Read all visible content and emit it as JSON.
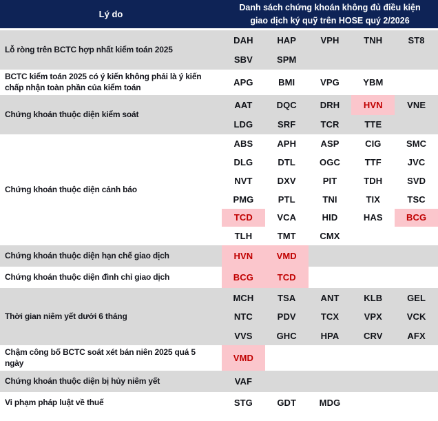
{
  "header": {
    "reason_label": "Lý do",
    "list_title_line1": "Danh sách chứng khoán không đủ điều kiện",
    "list_title_line2": "giao dịch ký quỹ trên HOSE quý 2/2026"
  },
  "colors": {
    "header_bg": "#0e2356",
    "header_text": "#ffffff",
    "row_shade": "#d9d9d9",
    "row_plain": "#ffffff",
    "highlight_bg": "#fbc6cc",
    "highlight_text": "#c00000",
    "label_text": "#15161d",
    "ticker_text": "#101218"
  },
  "rows": [
    {
      "reason": "Lỗ ròng trên BCTC hợp nhất kiểm toán 2025",
      "tickers": [
        {
          "t": "DAH",
          "hl": false
        },
        {
          "t": "HAP",
          "hl": false
        },
        {
          "t": "VPH",
          "hl": false
        },
        {
          "t": "TNH",
          "hl": false
        },
        {
          "t": "ST8",
          "hl": false
        },
        {
          "t": "SBV",
          "hl": false
        },
        {
          "t": "SPM",
          "hl": false
        }
      ]
    },
    {
      "reason": "BCTC kiểm toán 2025 có ý kiến không phải là ý kiến chấp nhận toàn phần của kiểm toán",
      "tickers": [
        {
          "t": "APG",
          "hl": false
        },
        {
          "t": "BMI",
          "hl": false
        },
        {
          "t": "VPG",
          "hl": false
        },
        {
          "t": "YBM",
          "hl": false
        }
      ]
    },
    {
      "reason": "Chứng khoán thuộc diện kiểm soát",
      "tickers": [
        {
          "t": "AAT",
          "hl": false
        },
        {
          "t": "DQC",
          "hl": false
        },
        {
          "t": "DRH",
          "hl": false
        },
        {
          "t": "HVN",
          "hl": true
        },
        {
          "t": "VNE",
          "hl": false
        },
        {
          "t": "LDG",
          "hl": false
        },
        {
          "t": "SRF",
          "hl": false
        },
        {
          "t": "TCR",
          "hl": false
        },
        {
          "t": "TTE",
          "hl": false
        }
      ]
    },
    {
      "reason": "Chứng khoán thuộc diện cảnh báo",
      "tickers": [
        {
          "t": "ABS",
          "hl": false
        },
        {
          "t": "APH",
          "hl": false
        },
        {
          "t": "ASP",
          "hl": false
        },
        {
          "t": "CIG",
          "hl": false
        },
        {
          "t": "SMC",
          "hl": false
        },
        {
          "t": "DLG",
          "hl": false
        },
        {
          "t": "DTL",
          "hl": false
        },
        {
          "t": "OGC",
          "hl": false
        },
        {
          "t": "TTF",
          "hl": false
        },
        {
          "t": "JVC",
          "hl": false
        },
        {
          "t": "NVT",
          "hl": false
        },
        {
          "t": "DXV",
          "hl": false
        },
        {
          "t": "PIT",
          "hl": false
        },
        {
          "t": "TDH",
          "hl": false
        },
        {
          "t": "SVD",
          "hl": false
        },
        {
          "t": "PMG",
          "hl": false
        },
        {
          "t": "PTL",
          "hl": false
        },
        {
          "t": "TNI",
          "hl": false
        },
        {
          "t": "TIX",
          "hl": false
        },
        {
          "t": "TSC",
          "hl": false
        },
        {
          "t": "TCD",
          "hl": true
        },
        {
          "t": "VCA",
          "hl": false
        },
        {
          "t": "HID",
          "hl": false
        },
        {
          "t": "HAS",
          "hl": false
        },
        {
          "t": "BCG",
          "hl": true
        },
        {
          "t": "TLH",
          "hl": false
        },
        {
          "t": "TMT",
          "hl": false
        },
        {
          "t": "CMX",
          "hl": false
        }
      ]
    },
    {
      "reason": "Chứng khoán thuộc diện hạn chế giao dịch",
      "tickers": [
        {
          "t": "HVN",
          "hl": true
        },
        {
          "t": "VMD",
          "hl": true
        }
      ]
    },
    {
      "reason": "Chứng khoán thuộc diện đình chỉ giao dịch",
      "tickers": [
        {
          "t": "BCG",
          "hl": true
        },
        {
          "t": "TCD",
          "hl": true
        }
      ]
    },
    {
      "reason": "Thời gian niêm yết dưới 6 tháng",
      "tickers": [
        {
          "t": "MCH",
          "hl": false
        },
        {
          "t": "TSA",
          "hl": false
        },
        {
          "t": "ANT",
          "hl": false
        },
        {
          "t": "KLB",
          "hl": false
        },
        {
          "t": "GEL",
          "hl": false
        },
        {
          "t": "NTC",
          "hl": false
        },
        {
          "t": "PDV",
          "hl": false
        },
        {
          "t": "TCX",
          "hl": false
        },
        {
          "t": "VPX",
          "hl": false
        },
        {
          "t": "VCK",
          "hl": false
        },
        {
          "t": "VVS",
          "hl": false
        },
        {
          "t": "GHC",
          "hl": false
        },
        {
          "t": "HPA",
          "hl": false
        },
        {
          "t": "CRV",
          "hl": false
        },
        {
          "t": "AFX",
          "hl": false
        }
      ]
    },
    {
      "reason": "Chậm công bố BCTC soát xét bán niên 2025 quá 5 ngày",
      "tickers": [
        {
          "t": "VMD",
          "hl": true
        }
      ]
    },
    {
      "reason": "Chứng khoán thuộc diện bị hủy niêm yết",
      "tickers": [
        {
          "t": "VAF",
          "hl": false
        }
      ]
    },
    {
      "reason": "Vi phạm pháp luật về thuế",
      "tickers": [
        {
          "t": "STG",
          "hl": false
        },
        {
          "t": "GDT",
          "hl": false
        },
        {
          "t": "MDG",
          "hl": false
        }
      ]
    }
  ]
}
